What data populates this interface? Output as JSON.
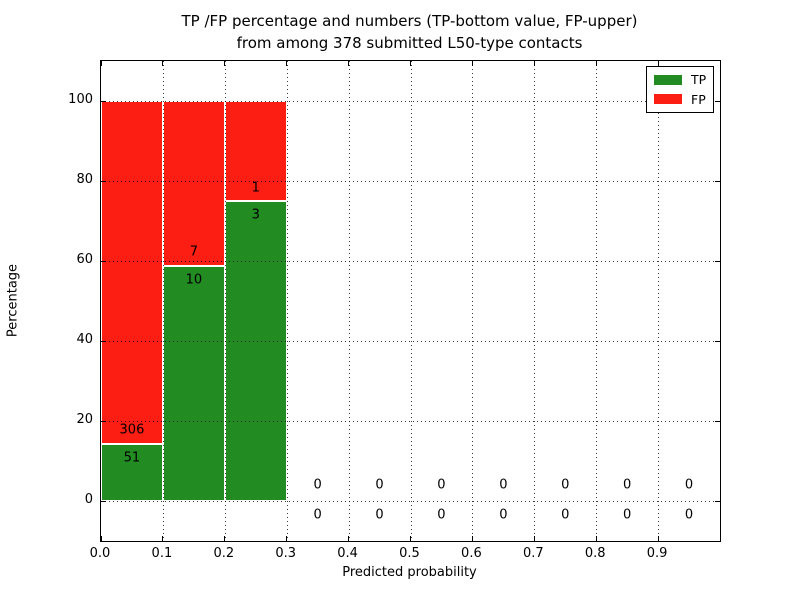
{
  "title": {
    "line1": "TP /FP percentage and numbers (TP-bottom value, FP-upper)",
    "line2": "from among 378 submitted L50-type contacts"
  },
  "legend": {
    "position": "upper right",
    "items": [
      {
        "label": "TP",
        "color": "#228b22"
      },
      {
        "label": "FP",
        "color": "#fc1d13"
      }
    ]
  },
  "colors": {
    "tp_green": "#228b22",
    "fp_red": "#fc1d13",
    "grid": "#000000",
    "frame": "#000000",
    "background": "#ffffff"
  },
  "chart_data": {
    "type": "bar",
    "stacked": true,
    "title": "TP /FP percentage and numbers (TP-bottom value, FP-upper) from among 378 submitted L50-type contacts",
    "xlabel": "Predicted probability",
    "ylabel": "Percentage",
    "xlim": [
      0.0,
      1.0
    ],
    "ylim": [
      -10,
      110
    ],
    "grid": "dotted",
    "legend_position": "upper right",
    "total_contacts": 378,
    "xticks": [
      0.0,
      0.1,
      0.2,
      0.3,
      0.4,
      0.5,
      0.6,
      0.7,
      0.8,
      0.9
    ],
    "xtick_labels": [
      "0.0",
      "0.1",
      "0.2",
      "0.3",
      "0.4",
      "0.5",
      "0.6",
      "0.7",
      "0.8",
      "0.9"
    ],
    "yticks": [
      0,
      20,
      40,
      60,
      80,
      100
    ],
    "ytick_labels": [
      "0",
      "20",
      "40",
      "60",
      "80",
      "100"
    ],
    "series": [
      {
        "name": "TP",
        "color": "#228b22"
      },
      {
        "name": "FP",
        "color": "#fc1d13"
      }
    ],
    "bins": [
      {
        "range": [
          0.0,
          0.1
        ],
        "tp_count": "51",
        "fp_count": "306",
        "tp_pct": 14.29,
        "fp_pct": 85.71
      },
      {
        "range": [
          0.1,
          0.2
        ],
        "tp_count": "10",
        "fp_count": "7",
        "tp_pct": 58.82,
        "fp_pct": 41.18
      },
      {
        "range": [
          0.2,
          0.3
        ],
        "tp_count": "3",
        "fp_count": "1",
        "tp_pct": 75.0,
        "fp_pct": 25.0
      },
      {
        "range": [
          0.3,
          0.4
        ],
        "tp_count": "0",
        "fp_count": "0",
        "tp_pct": 0,
        "fp_pct": 0
      },
      {
        "range": [
          0.4,
          0.5
        ],
        "tp_count": "0",
        "fp_count": "0",
        "tp_pct": 0,
        "fp_pct": 0
      },
      {
        "range": [
          0.5,
          0.6
        ],
        "tp_count": "0",
        "fp_count": "0",
        "tp_pct": 0,
        "fp_pct": 0
      },
      {
        "range": [
          0.6,
          0.7
        ],
        "tp_count": "0",
        "fp_count": "0",
        "tp_pct": 0,
        "fp_pct": 0
      },
      {
        "range": [
          0.7,
          0.8
        ],
        "tp_count": "0",
        "fp_count": "0",
        "tp_pct": 0,
        "fp_pct": 0
      },
      {
        "range": [
          0.8,
          0.9
        ],
        "tp_count": "0",
        "fp_count": "0",
        "tp_pct": 0,
        "fp_pct": 0
      },
      {
        "range": [
          0.9,
          1.0
        ],
        "tp_count": "0",
        "fp_count": "0",
        "tp_pct": 0,
        "fp_pct": 0
      }
    ]
  }
}
